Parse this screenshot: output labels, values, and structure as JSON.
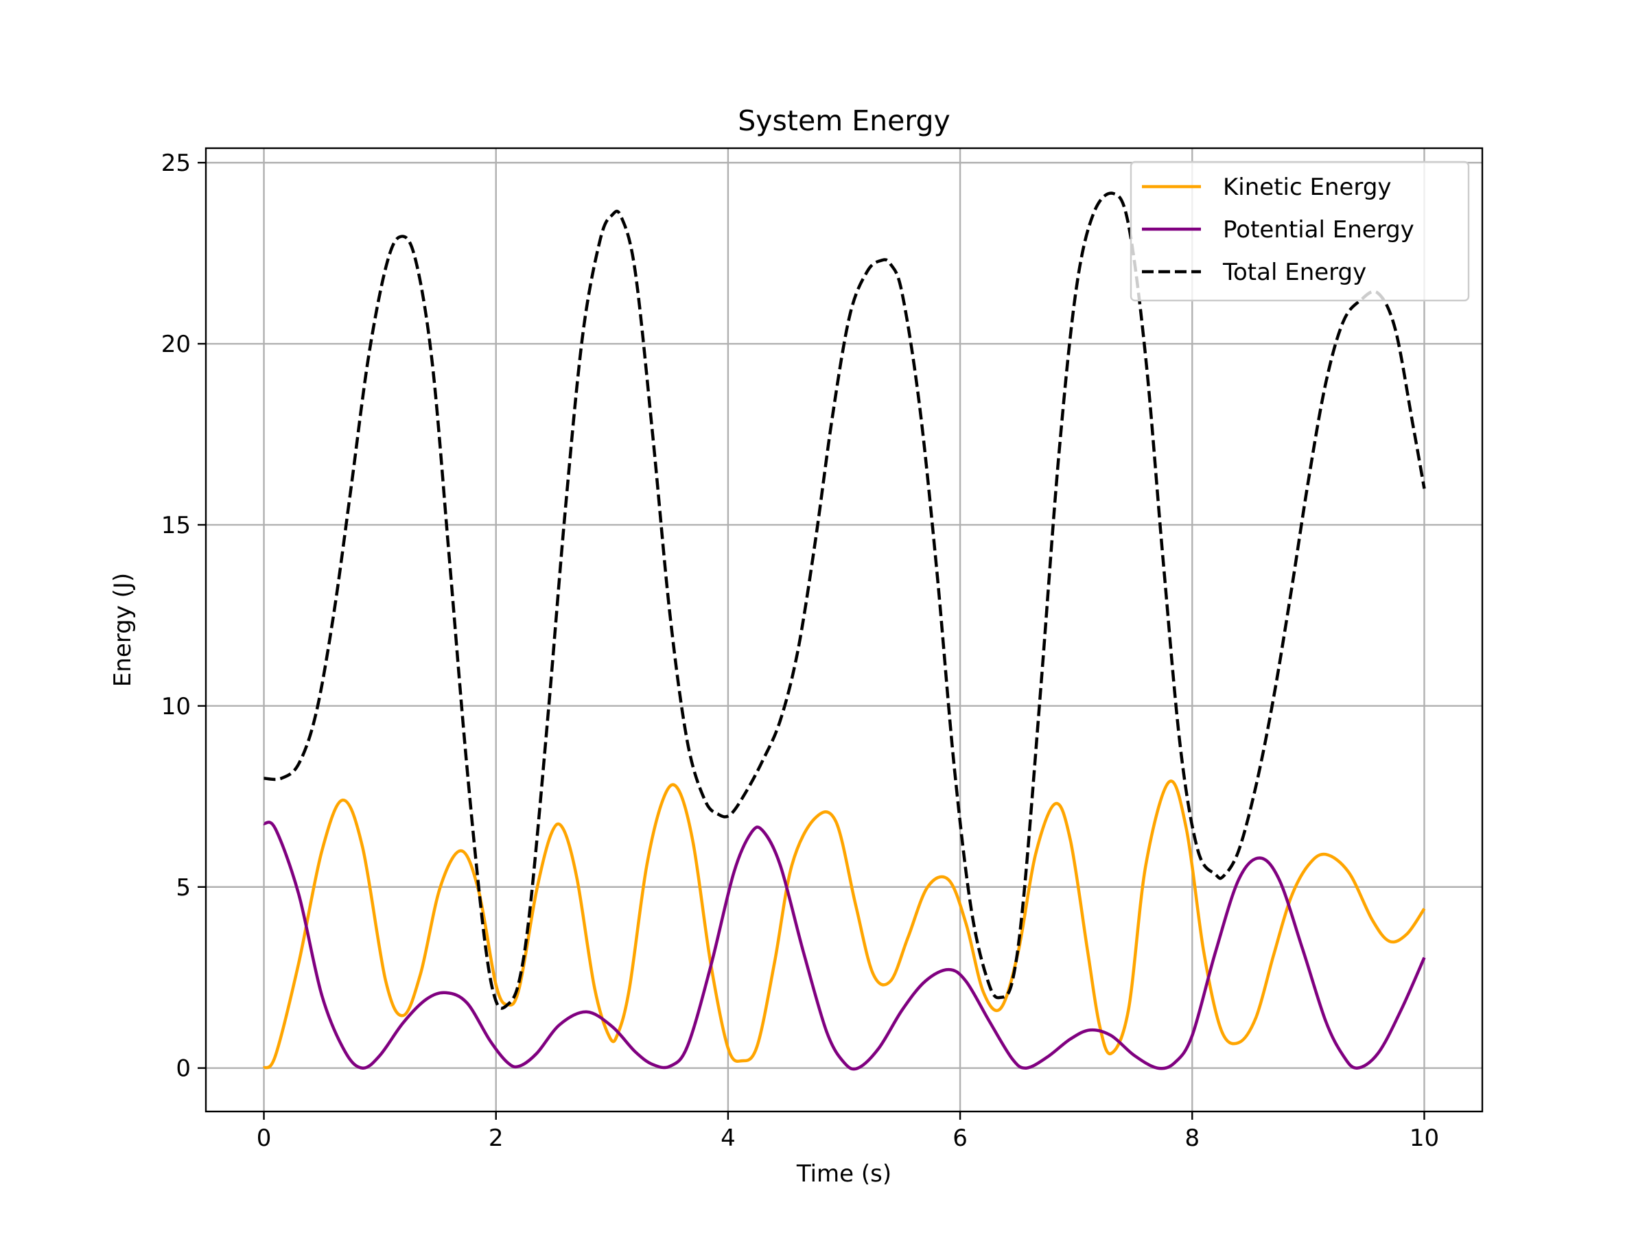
{
  "chart_data": {
    "type": "line",
    "title": "System Energy",
    "xlabel": "Time (s)",
    "ylabel": "Energy (J)",
    "xlim": [
      -0.5,
      10.5
    ],
    "ylim": [
      -1.2,
      25.4
    ],
    "xticks": [
      0,
      2,
      4,
      6,
      8,
      10
    ],
    "yticks": [
      0,
      5,
      10,
      15,
      20,
      25
    ],
    "grid": true,
    "legend_position": "top-right",
    "series": [
      {
        "name": "Kinetic Energy",
        "color": "#FFA500",
        "style": "solid",
        "x": [
          0,
          0.1,
          0.3,
          0.5,
          0.68,
          0.85,
          1.05,
          1.2,
          1.35,
          1.52,
          1.7,
          1.85,
          2.0,
          2.1,
          2.2,
          2.35,
          2.48,
          2.58,
          2.7,
          2.85,
          2.98,
          3.05,
          3.15,
          3.3,
          3.45,
          3.57,
          3.7,
          3.85,
          4.0,
          4.12,
          4.25,
          4.4,
          4.55,
          4.75,
          4.93,
          5.1,
          5.25,
          5.4,
          5.55,
          5.72,
          5.9,
          6.05,
          6.2,
          6.35,
          6.5,
          6.65,
          6.82,
          6.95,
          7.1,
          7.2,
          7.3,
          7.45,
          7.6,
          7.8,
          7.95,
          8.1,
          8.25,
          8.4,
          8.55,
          8.7,
          8.85,
          9.0,
          9.15,
          9.35,
          9.55,
          9.7,
          9.85,
          10.0
        ],
        "y": [
          0,
          0.35,
          2.9,
          6.0,
          7.4,
          6.1,
          2.4,
          1.45,
          2.6,
          5.0,
          6.0,
          4.9,
          2.3,
          1.75,
          2.2,
          4.9,
          6.5,
          6.6,
          5.2,
          2.2,
          0.85,
          0.95,
          2.2,
          5.6,
          7.5,
          7.7,
          6.2,
          2.9,
          0.55,
          0.2,
          0.6,
          2.9,
          5.6,
          6.9,
          6.8,
          4.5,
          2.6,
          2.4,
          3.6,
          5.0,
          5.2,
          4.0,
          2.1,
          1.65,
          3.2,
          5.9,
          7.3,
          6.3,
          3.2,
          1.2,
          0.4,
          1.6,
          5.6,
          7.9,
          6.6,
          3.2,
          1.05,
          0.7,
          1.4,
          3.1,
          4.7,
          5.6,
          5.9,
          5.4,
          4.1,
          3.5,
          3.7,
          4.4
        ]
      },
      {
        "name": "Potential Energy",
        "color": "#800080",
        "style": "solid",
        "x": [
          0,
          0.1,
          0.3,
          0.5,
          0.7,
          0.85,
          1.0,
          1.2,
          1.4,
          1.57,
          1.75,
          1.95,
          2.1,
          2.2,
          2.35,
          2.55,
          2.78,
          3.0,
          3.2,
          3.35,
          3.5,
          3.65,
          3.85,
          4.05,
          4.2,
          4.3,
          4.45,
          4.65,
          4.85,
          5.0,
          5.12,
          5.3,
          5.5,
          5.7,
          5.9,
          6.05,
          6.25,
          6.45,
          6.57,
          6.75,
          6.95,
          7.12,
          7.3,
          7.5,
          7.7,
          7.85,
          8.0,
          8.2,
          8.4,
          8.58,
          8.75,
          8.95,
          9.15,
          9.3,
          9.42,
          9.6,
          9.8,
          10.0
        ],
        "y": [
          6.75,
          6.6,
          4.8,
          2.0,
          0.45,
          0.0,
          0.35,
          1.25,
          1.9,
          2.08,
          1.8,
          0.75,
          0.15,
          0.05,
          0.4,
          1.2,
          1.55,
          1.15,
          0.45,
          0.1,
          0.05,
          0.6,
          2.8,
          5.4,
          6.5,
          6.55,
          5.6,
          3.2,
          1.0,
          0.15,
          0.0,
          0.55,
          1.6,
          2.4,
          2.72,
          2.4,
          1.3,
          0.25,
          0.0,
          0.3,
          0.8,
          1.05,
          0.9,
          0.35,
          0.0,
          0.15,
          0.9,
          3.2,
          5.2,
          5.8,
          5.2,
          3.3,
          1.3,
          0.35,
          0.0,
          0.4,
          1.6,
          3.05
        ]
      },
      {
        "name": "Total Energy",
        "color": "#000000",
        "style": "dashed",
        "x": [
          0,
          0.15,
          0.3,
          0.45,
          0.6,
          0.75,
          0.9,
          1.05,
          1.17,
          1.3,
          1.45,
          1.6,
          1.75,
          1.9,
          2.0,
          2.1,
          2.2,
          2.3,
          2.45,
          2.6,
          2.75,
          2.9,
          3.0,
          3.08,
          3.2,
          3.35,
          3.5,
          3.65,
          3.8,
          3.92,
          4.02,
          4.15,
          4.3,
          4.45,
          4.6,
          4.75,
          4.9,
          5.05,
          5.2,
          5.32,
          5.4,
          5.5,
          5.65,
          5.8,
          5.95,
          6.1,
          6.25,
          6.35,
          6.45,
          6.55,
          6.7,
          6.85,
          7.0,
          7.15,
          7.32,
          7.45,
          7.6,
          7.75,
          7.9,
          8.05,
          8.2,
          8.27,
          8.4,
          8.55,
          8.7,
          8.85,
          9.0,
          9.15,
          9.3,
          9.45,
          9.6,
          9.75,
          9.9,
          10.0
        ],
        "y": [
          8.0,
          8.0,
          8.4,
          9.8,
          12.5,
          16.0,
          19.6,
          22.1,
          22.95,
          22.4,
          19.5,
          14.0,
          8.3,
          3.6,
          1.85,
          1.75,
          2.4,
          4.6,
          9.8,
          15.5,
          20.3,
          22.9,
          23.55,
          23.5,
          22.0,
          17.5,
          12.5,
          9.0,
          7.4,
          7.0,
          7.0,
          7.6,
          8.5,
          9.6,
          11.5,
          14.5,
          18.0,
          20.8,
          22.0,
          22.3,
          22.2,
          21.4,
          18.3,
          13.7,
          8.3,
          4.3,
          2.3,
          1.95,
          2.4,
          4.8,
          10.7,
          16.9,
          21.5,
          23.6,
          24.15,
          23.3,
          19.6,
          14.0,
          8.8,
          6.0,
          5.35,
          5.3,
          6.0,
          7.8,
          10.2,
          13.1,
          16.2,
          18.9,
          20.6,
          21.2,
          21.4,
          20.4,
          17.8,
          16.0
        ]
      }
    ]
  }
}
